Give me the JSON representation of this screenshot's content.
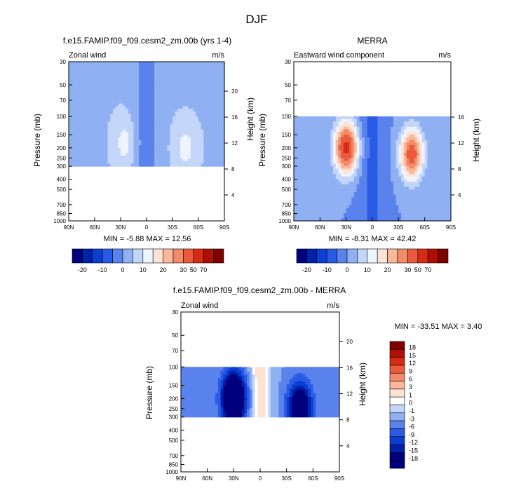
{
  "figure_title": "DJF",
  "chart_data": [
    {
      "type": "heatmap",
      "title": "f.e15.FAMIP.f09_f09.cesm2_zm.00b (yrs 1-4)",
      "left_string": "Zonal wind",
      "right_string": "m/s",
      "xlabel": "",
      "ylabel": "Pressure (mb)",
      "ylabel_right": "Height (km)",
      "x_ticks": [
        "90N",
        "60N",
        "30N",
        "0",
        "30S",
        "60S",
        "90S"
      ],
      "y_ticks": [
        "30",
        "50",
        "70",
        "100",
        "150",
        "200",
        "250",
        "300",
        "400",
        "500",
        "700",
        "850",
        "1000"
      ],
      "y_values": [
        30,
        50,
        70,
        100,
        150,
        200,
        250,
        300,
        400,
        500,
        700,
        850,
        1000
      ],
      "height_ticks": [
        "20",
        "16",
        "12",
        "8",
        "4"
      ],
      "height_values": [
        20,
        16,
        12,
        8,
        4
      ],
      "data_pressure_range": [
        30,
        300
      ],
      "min_max_text": "MIN = -5.88  MAX = 12.56",
      "min": -5.88,
      "max": 12.56,
      "jets": [
        {
          "lat": 25,
          "p": 180,
          "peak": 12
        },
        {
          "lat": -45,
          "p": 200,
          "peak": 12
        }
      ],
      "background": 4.5,
      "tropical_min": -5,
      "scale": "absolute"
    },
    {
      "type": "heatmap",
      "title": "MERRA",
      "left_string": "Eastward wind component",
      "right_string": "m/s",
      "xlabel": "",
      "ylabel": "Pressure (mb)",
      "ylabel_right": "Height (km)",
      "x_ticks": [
        "90N",
        "60N",
        "30N",
        "0",
        "30S",
        "60S",
        "90S"
      ],
      "y_ticks": [
        "30",
        "50",
        "70",
        "100",
        "150",
        "200",
        "250",
        "300",
        "400",
        "500",
        "700",
        "850",
        "1000"
      ],
      "y_values": [
        30,
        50,
        70,
        100,
        150,
        200,
        250,
        300,
        400,
        500,
        700,
        850,
        1000
      ],
      "height_ticks": [
        "16",
        "12",
        "8",
        "4"
      ],
      "height_values": [
        16,
        12,
        8,
        4
      ],
      "data_pressure_range": [
        100,
        1000
      ],
      "min_max_text": "MIN = -8.31  MAX = 42.42",
      "min": -8.31,
      "max": 42.42,
      "jets": [
        {
          "lat": 30,
          "p": 200,
          "peak": 42
        },
        {
          "lat": -45,
          "p": 230,
          "peak": 35
        }
      ],
      "background": 0,
      "tropical_min": -8,
      "scale": "absolute"
    },
    {
      "type": "heatmap",
      "title": "f.e15.FAMIP.f09_f09.cesm2_zm.00b - MERRA",
      "left_string": "Zonal wind",
      "right_string": "m/s",
      "xlabel": "",
      "ylabel": "Pressure (mb)",
      "ylabel_right": "Height (km)",
      "x_ticks": [
        "90N",
        "60N",
        "30N",
        "0",
        "30S",
        "60S",
        "90S"
      ],
      "y_ticks": [
        "30",
        "50",
        "70",
        "100",
        "150",
        "200",
        "250",
        "300",
        "400",
        "500",
        "700",
        "850",
        "1000"
      ],
      "y_values": [
        30,
        50,
        70,
        100,
        150,
        200,
        250,
        300,
        400,
        500,
        700,
        850,
        1000
      ],
      "height_ticks": [
        "20",
        "16",
        "12",
        "8",
        "4"
      ],
      "height_values": [
        20,
        16,
        12,
        8,
        4
      ],
      "data_pressure_range": [
        100,
        300
      ],
      "min_max_text": "MIN = -33.51  MAX =  3.40",
      "min": -33.51,
      "max": 3.4,
      "jets": [
        {
          "lat": 30,
          "p": 200,
          "peak": -33
        },
        {
          "lat": -45,
          "p": 250,
          "peak": -25
        }
      ],
      "background": -3,
      "tropical_min": 3,
      "scale": "difference"
    }
  ],
  "colorbar_absolute": {
    "labels": [
      "-20",
      "-10",
      "0",
      "10",
      "20",
      "30",
      "50",
      "70"
    ],
    "colors": [
      "#00007f",
      "#0021aa",
      "#0b3fd2",
      "#2a5be6",
      "#5a82ec",
      "#8fb0f2",
      "#c3d6f9",
      "#eef3fd",
      "#fde3d3",
      "#f9b79b",
      "#f38a6b",
      "#eb5a3d",
      "#d62b12",
      "#b00f05",
      "#7f0000"
    ]
  },
  "colorbar_difference": {
    "labels": [
      "18",
      "15",
      "12",
      "9",
      "6",
      "3",
      "1",
      "0",
      "-1",
      "-3",
      "-6",
      "-9",
      "-12",
      "-15",
      "-18"
    ],
    "colors": [
      "#7f0000",
      "#b00f05",
      "#d62b12",
      "#eb5a3d",
      "#f38a6b",
      "#f9b79b",
      "#fde3d3",
      "#ffffff",
      "#c3d6f9",
      "#8fb0f2",
      "#5a82ec",
      "#2a5be6",
      "#0b3fd2",
      "#0021aa",
      "#00007f",
      "#00007f"
    ]
  }
}
